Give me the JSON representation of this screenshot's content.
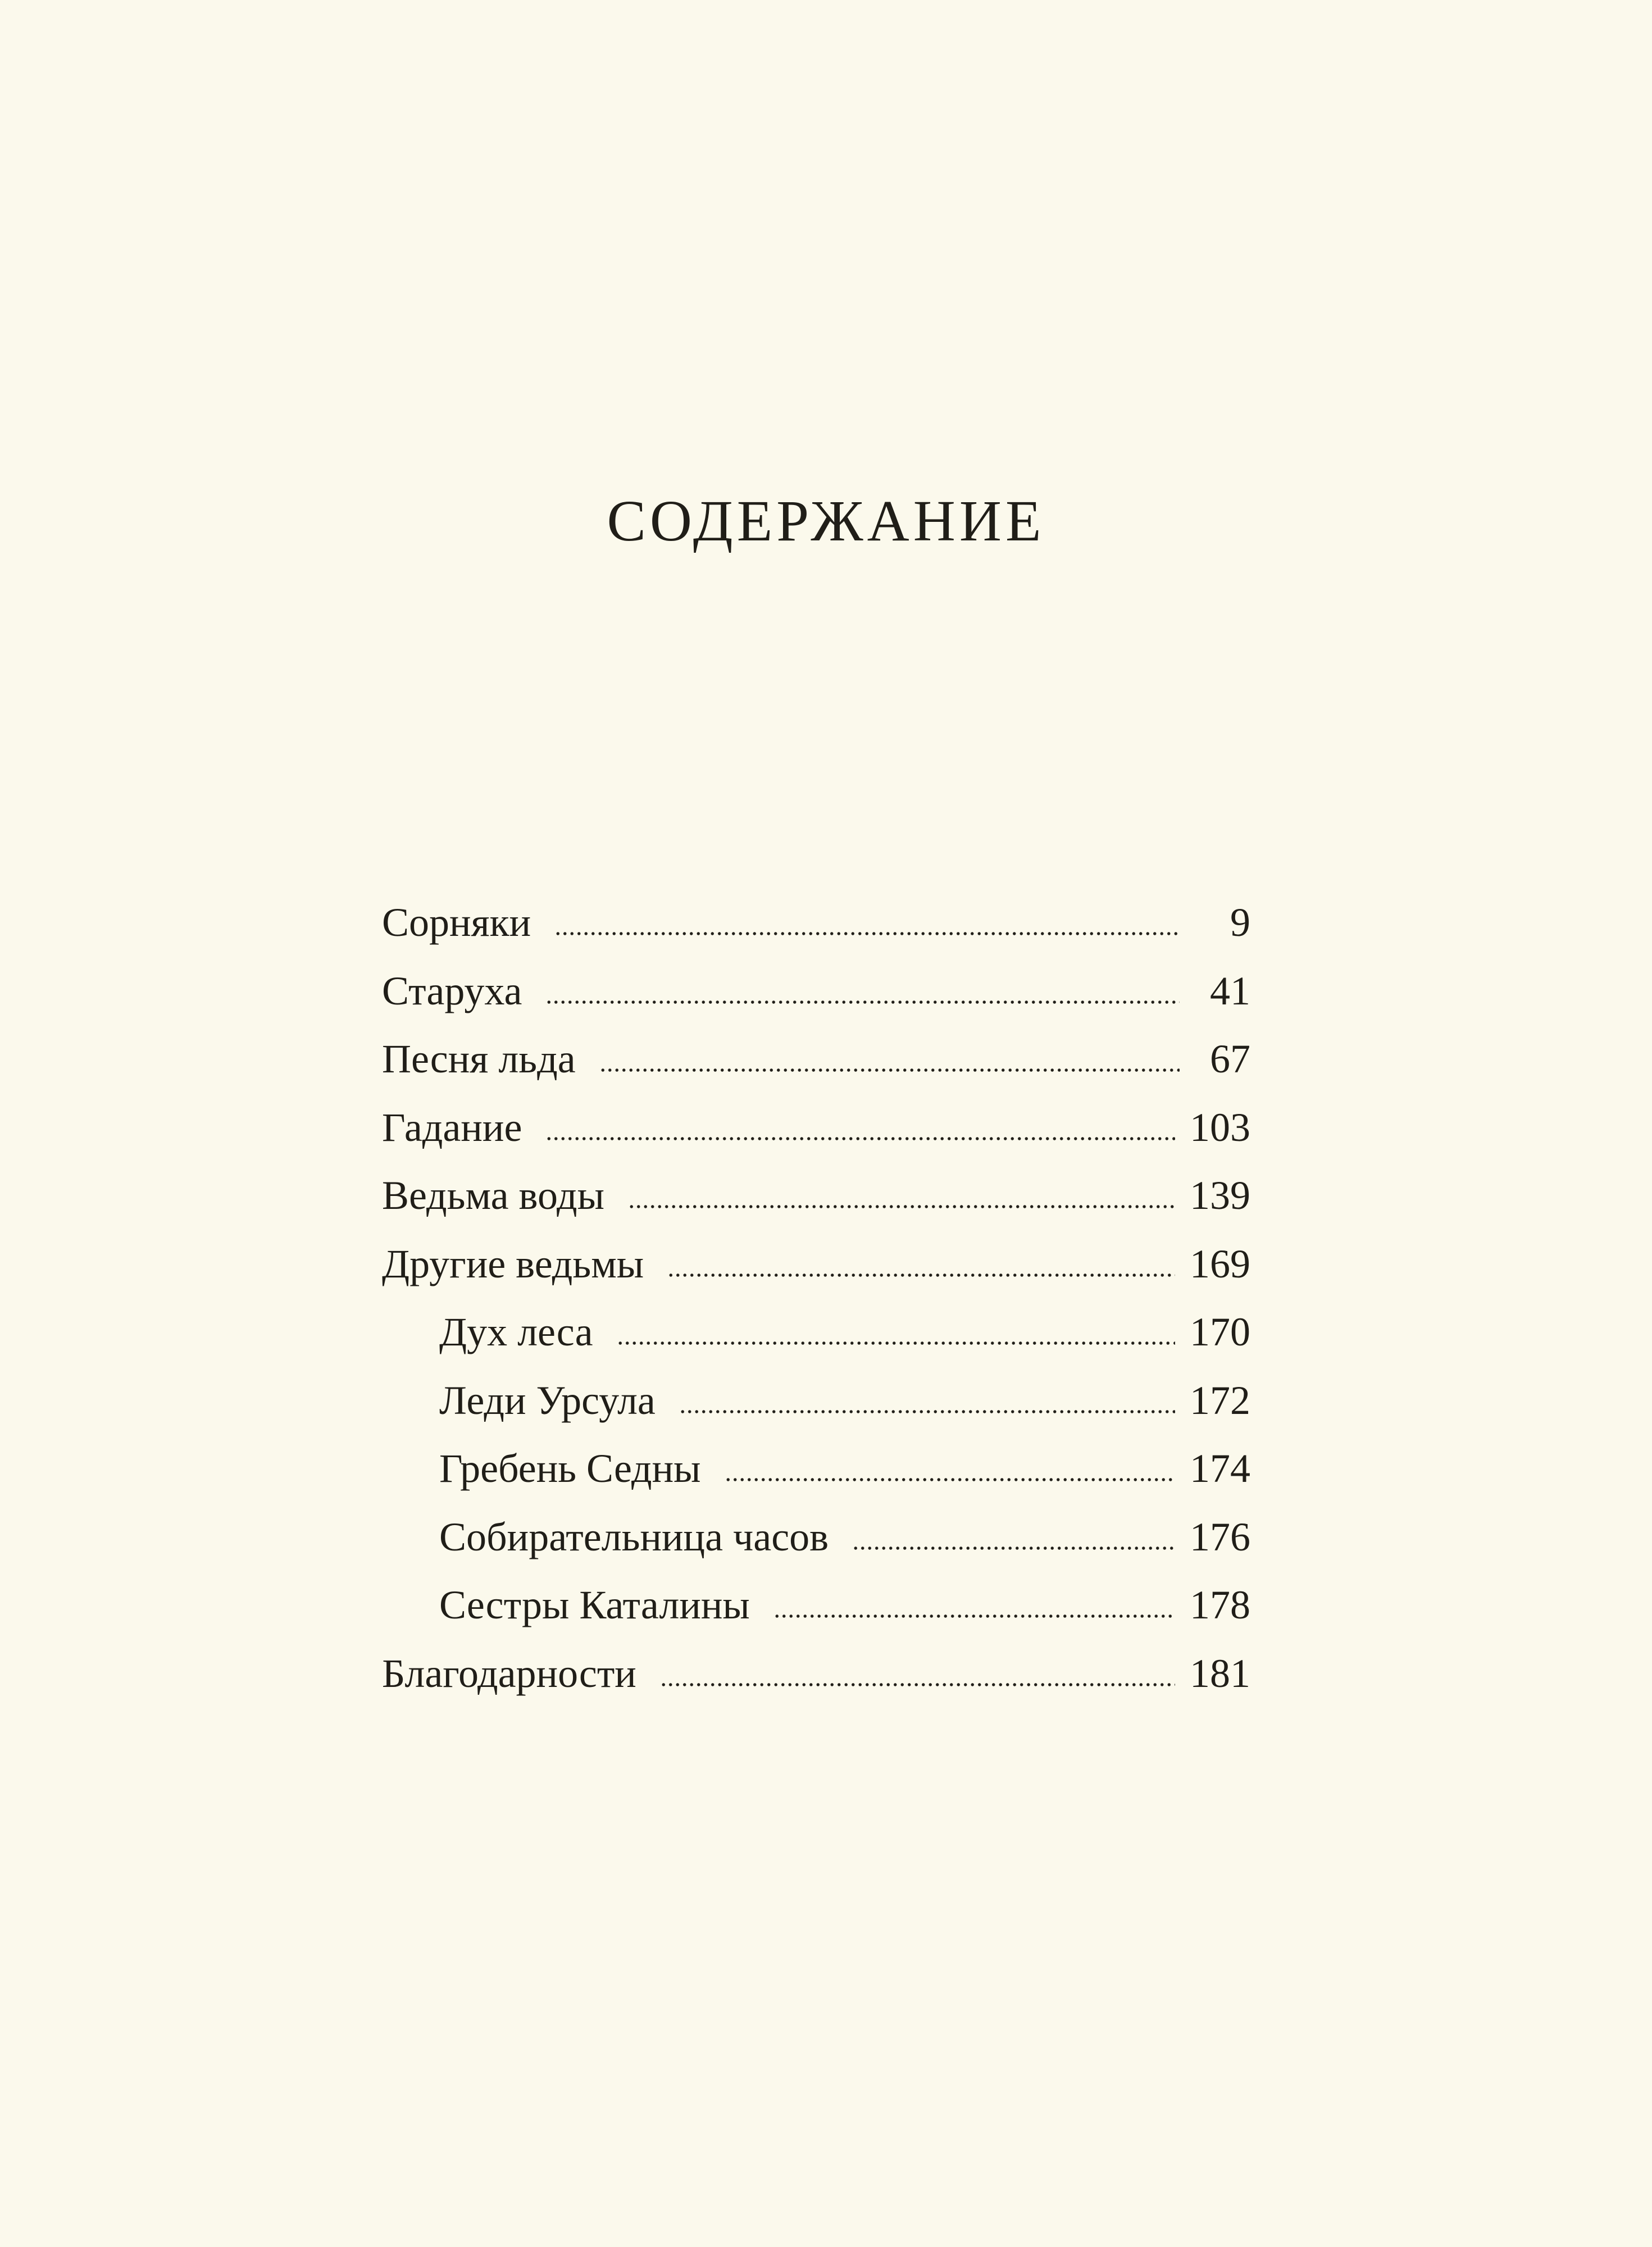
{
  "page": {
    "title": "СОДЕРЖАНИЕ",
    "background_color": "#fbf9ec",
    "ink_color": "#201e18"
  },
  "toc": {
    "entries": [
      {
        "label": "Сорняки",
        "page": "9",
        "level": 0
      },
      {
        "label": "Старуха",
        "page": "41",
        "level": 0
      },
      {
        "label": "Песня льда",
        "page": "67",
        "level": 0
      },
      {
        "label": "Гадание",
        "page": "103",
        "level": 0
      },
      {
        "label": "Ведьма воды",
        "page": "139",
        "level": 0
      },
      {
        "label": "Другие ведьмы",
        "page": "169",
        "level": 0
      },
      {
        "label": "Дух леса",
        "page": "170",
        "level": 1
      },
      {
        "label": "Леди Урсула",
        "page": "172",
        "level": 1
      },
      {
        "label": "Гребень Седны",
        "page": "174",
        "level": 1
      },
      {
        "label": "Собирательница часов",
        "page": "176",
        "level": 1
      },
      {
        "label": "Сестры Каталины",
        "page": "178",
        "level": 1
      },
      {
        "label": "Благодарности",
        "page": "181",
        "level": 0
      }
    ]
  }
}
